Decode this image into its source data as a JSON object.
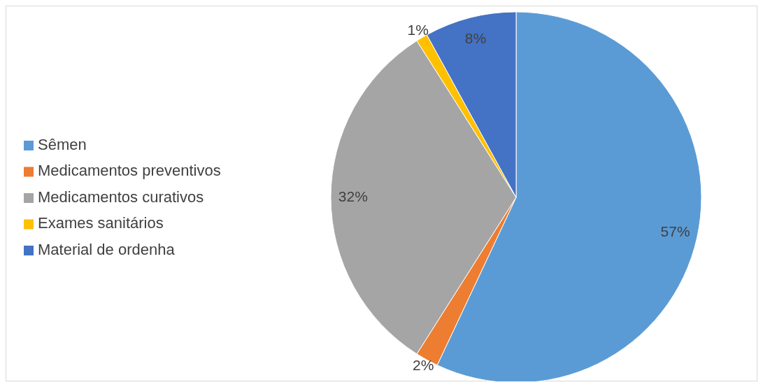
{
  "chart_data": {
    "type": "pie",
    "categories": [
      "Sêmen",
      "Medicamentos preventivos",
      "Medicamentos curativos",
      "Exames sanitários",
      "Material de ordenha"
    ],
    "values": [
      57,
      2,
      32,
      1,
      8
    ],
    "colors": [
      "#5b9bd5",
      "#ed7d31",
      "#a5a5a5",
      "#ffc000",
      "#4472c4"
    ],
    "value_labels": [
      "57%",
      "2%",
      "32%",
      "1%",
      "8%"
    ],
    "legend": "left"
  }
}
